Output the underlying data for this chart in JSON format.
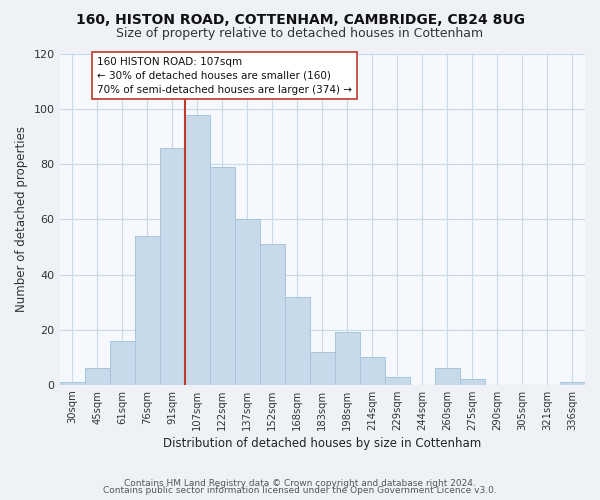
{
  "title": "160, HISTON ROAD, COTTENHAM, CAMBRIDGE, CB24 8UG",
  "subtitle": "Size of property relative to detached houses in Cottenham",
  "xlabel": "Distribution of detached houses by size in Cottenham",
  "ylabel": "Number of detached properties",
  "footer_lines": [
    "Contains HM Land Registry data © Crown copyright and database right 2024.",
    "Contains public sector information licensed under the Open Government Licence v3.0."
  ],
  "bar_labels": [
    "30sqm",
    "45sqm",
    "61sqm",
    "76sqm",
    "91sqm",
    "107sqm",
    "122sqm",
    "137sqm",
    "152sqm",
    "168sqm",
    "183sqm",
    "198sqm",
    "214sqm",
    "229sqm",
    "244sqm",
    "260sqm",
    "275sqm",
    "290sqm",
    "305sqm",
    "321sqm",
    "336sqm"
  ],
  "bar_values": [
    1,
    6,
    16,
    54,
    86,
    98,
    79,
    60,
    51,
    32,
    12,
    19,
    10,
    3,
    0,
    6,
    2,
    0,
    0,
    0,
    1
  ],
  "bar_color": "#c8d9ea",
  "bar_edge_color": "#a8c4dc",
  "highlight_index": 5,
  "vline_color": "#c0392b",
  "annotation_line1": "160 HISTON ROAD: 107sqm",
  "annotation_line2": "← 30% of detached houses are smaller (160)",
  "annotation_line3": "70% of semi-detached houses are larger (374) →",
  "annotation_box_facecolor": "#ffffff",
  "annotation_box_edgecolor": "#c0392b",
  "ylim": [
    0,
    120
  ],
  "yticks": [
    0,
    20,
    40,
    60,
    80,
    100,
    120
  ],
  "background_color": "#eef2f7",
  "plot_background_color": "#f5f8fc",
  "grid_color": "#c8d9ea",
  "title_fontsize": 10,
  "subtitle_fontsize": 9
}
